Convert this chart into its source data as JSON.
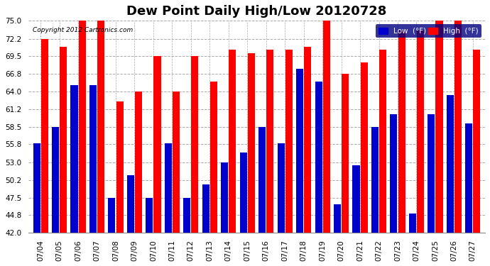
{
  "title": "Dew Point Daily High/Low 20120728",
  "copyright": "Copyright 2012 Cartronics.com",
  "dates": [
    "07/04",
    "07/05",
    "07/06",
    "07/07",
    "07/08",
    "07/09",
    "07/10",
    "07/11",
    "07/12",
    "07/13",
    "07/14",
    "07/15",
    "07/16",
    "07/17",
    "07/18",
    "07/19",
    "07/20",
    "07/21",
    "07/22",
    "07/23",
    "07/24",
    "07/25",
    "07/26",
    "07/27"
  ],
  "high": [
    72.2,
    71.0,
    75.0,
    75.0,
    62.5,
    64.0,
    69.5,
    64.0,
    69.5,
    65.5,
    70.5,
    70.0,
    70.5,
    70.5,
    71.0,
    75.0,
    66.8,
    68.5,
    70.5,
    73.5,
    73.5,
    75.0,
    75.0,
    70.5
  ],
  "low": [
    56.0,
    58.5,
    65.0,
    65.0,
    47.5,
    51.0,
    47.5,
    56.0,
    47.5,
    49.5,
    53.0,
    54.5,
    58.5,
    56.0,
    67.5,
    65.5,
    46.5,
    52.5,
    58.5,
    60.5,
    45.0,
    60.5,
    63.5,
    59.0
  ],
  "ylim_min": 42.0,
  "ylim_max": 75.0,
  "yticks": [
    42.0,
    44.8,
    47.5,
    50.2,
    53.0,
    55.8,
    58.5,
    61.2,
    64.0,
    66.8,
    69.5,
    72.2,
    75.0
  ],
  "bar_color_high": "#ff0000",
  "bar_color_low": "#0000cc",
  "background_color": "#ffffff",
  "plot_bg_color": "#ffffff",
  "grid_color": "#aaaaaa",
  "title_fontsize": 13,
  "legend_low_label": "Low  (°F)",
  "legend_high_label": "High  (°F)"
}
